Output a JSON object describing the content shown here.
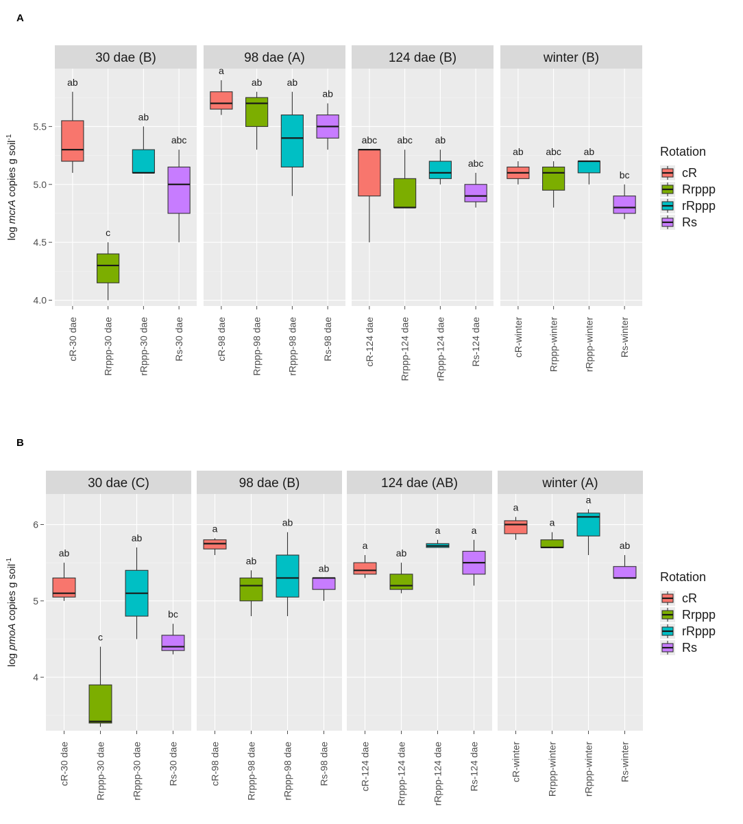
{
  "colors": {
    "cR": "#f8766d",
    "Rrppp": "#7cae00",
    "rRppp": "#00bfc4",
    "Rs": "#c77cff"
  },
  "legend": {
    "title": "Rotation",
    "entries": [
      {
        "key": "cR",
        "label": "cR"
      },
      {
        "key": "Rrppp",
        "label": "Rrppp"
      },
      {
        "key": "rRppp",
        "label": "rRppp"
      },
      {
        "key": "Rs",
        "label": "Rs"
      }
    ]
  },
  "chart_data": [
    {
      "type": "box",
      "panel_letter": "A",
      "ylabel_pre": "log ",
      "ylabel_gene": "mcrA",
      "ylabel_post": " copies g soil",
      "ylabel_sup": "-1",
      "ylim": [
        3.95,
        6.0
      ],
      "yticks": [
        4.0,
        4.5,
        5.0,
        5.5
      ],
      "ytick_labels": [
        "4.0",
        "4.5",
        "5.0",
        "5.5"
      ],
      "facets": [
        {
          "title": "30 dae (B)",
          "boxes": [
            {
              "label": "cR-30 dae",
              "group": "cR",
              "min": 5.1,
              "q1": 5.2,
              "median": 5.3,
              "q3": 5.55,
              "max": 5.8,
              "letter": "ab"
            },
            {
              "label": "Rrppp-30 dae",
              "group": "Rrppp",
              "min": 4.0,
              "q1": 4.15,
              "median": 4.3,
              "q3": 4.4,
              "max": 4.5,
              "letter": "c"
            },
            {
              "label": "rRppp-30 dae",
              "group": "rRppp",
              "min": 5.1,
              "q1": 5.1,
              "median": 5.1,
              "q3": 5.3,
              "max": 5.5,
              "letter": "ab"
            },
            {
              "label": "Rs-30 dae",
              "group": "Rs",
              "min": 4.5,
              "q1": 4.75,
              "median": 5.0,
              "q3": 5.15,
              "max": 5.3,
              "letter": "abc"
            }
          ]
        },
        {
          "title": "98 dae (A)",
          "boxes": [
            {
              "label": "cR-98 dae",
              "group": "cR",
              "min": 5.6,
              "q1": 5.65,
              "median": 5.7,
              "q3": 5.8,
              "max": 5.9,
              "letter": "a"
            },
            {
              "label": "Rrppp-98 dae",
              "group": "Rrppp",
              "min": 5.3,
              "q1": 5.5,
              "median": 5.7,
              "q3": 5.75,
              "max": 5.8,
              "letter": "ab"
            },
            {
              "label": "rRppp-98 dae",
              "group": "rRppp",
              "min": 4.9,
              "q1": 5.15,
              "median": 5.4,
              "q3": 5.6,
              "max": 5.8,
              "letter": "ab"
            },
            {
              "label": "Rs-98 dae",
              "group": "Rs",
              "min": 5.3,
              "q1": 5.4,
              "median": 5.5,
              "q3": 5.6,
              "max": 5.7,
              "letter": "ab"
            }
          ]
        },
        {
          "title": "124 dae (B)",
          "boxes": [
            {
              "label": "cR-124 dae",
              "group": "cR",
              "min": 4.5,
              "q1": 4.9,
              "median": 5.3,
              "q3": 5.3,
              "max": 5.3,
              "letter": "abc"
            },
            {
              "label": "Rrppp-124 dae",
              "group": "Rrppp",
              "min": 4.8,
              "q1": 4.8,
              "median": 4.8,
              "q3": 5.05,
              "max": 5.3,
              "letter": "abc"
            },
            {
              "label": "rRppp-124 dae",
              "group": "rRppp",
              "min": 5.0,
              "q1": 5.05,
              "median": 5.1,
              "q3": 5.2,
              "max": 5.3,
              "letter": "ab"
            },
            {
              "label": "Rs-124 dae",
              "group": "Rs",
              "min": 4.8,
              "q1": 4.85,
              "median": 4.9,
              "q3": 5.0,
              "max": 5.1,
              "letter": "abc"
            }
          ]
        },
        {
          "title": "winter (B)",
          "boxes": [
            {
              "label": "cR-winter",
              "group": "cR",
              "min": 5.0,
              "q1": 5.05,
              "median": 5.1,
              "q3": 5.15,
              "max": 5.2,
              "letter": "ab"
            },
            {
              "label": "Rrppp-winter",
              "group": "Rrppp",
              "min": 4.8,
              "q1": 4.95,
              "median": 5.1,
              "q3": 5.15,
              "max": 5.2,
              "letter": "abc"
            },
            {
              "label": "rRppp-winter",
              "group": "rRppp",
              "min": 5.0,
              "q1": 5.1,
              "median": 5.2,
              "q3": 5.2,
              "max": 5.2,
              "letter": "ab"
            },
            {
              "label": "Rs-winter",
              "group": "Rs",
              "min": 4.7,
              "q1": 4.75,
              "median": 4.8,
              "q3": 4.9,
              "max": 5.0,
              "letter": "bc"
            }
          ]
        }
      ]
    },
    {
      "type": "box",
      "panel_letter": "B",
      "ylabel_pre": "log ",
      "ylabel_gene": "pmoA",
      "ylabel_post": " copies g soil",
      "ylabel_sup": "-1",
      "ylim": [
        3.3,
        6.4
      ],
      "yticks": [
        4,
        5,
        6
      ],
      "ytick_labels": [
        "4",
        "5",
        "6"
      ],
      "facets": [
        {
          "title": "30 dae (C)",
          "boxes": [
            {
              "label": "cR-30 dae",
              "group": "cR",
              "min": 5.0,
              "q1": 5.05,
              "median": 5.1,
              "q3": 5.3,
              "max": 5.5,
              "letter": "ab"
            },
            {
              "label": "Rrppp-30 dae",
              "group": "Rrppp",
              "min": 3.35,
              "q1": 3.4,
              "median": 3.42,
              "q3": 3.9,
              "max": 4.4,
              "letter": "c"
            },
            {
              "label": "rRppp-30 dae",
              "group": "rRppp",
              "min": 4.5,
              "q1": 4.8,
              "median": 5.1,
              "q3": 5.4,
              "max": 5.7,
              "letter": "ab"
            },
            {
              "label": "Rs-30 dae",
              "group": "Rs",
              "min": 4.3,
              "q1": 4.35,
              "median": 4.4,
              "q3": 4.55,
              "max": 4.7,
              "letter": "bc"
            }
          ]
        },
        {
          "title": "98 dae (B)",
          "boxes": [
            {
              "label": "cR-98 dae",
              "group": "cR",
              "min": 5.6,
              "q1": 5.68,
              "median": 5.75,
              "q3": 5.8,
              "max": 5.82,
              "letter": "a"
            },
            {
              "label": "Rrppp-98 dae",
              "group": "Rrppp",
              "min": 4.8,
              "q1": 5.0,
              "median": 5.2,
              "q3": 5.3,
              "max": 5.4,
              "letter": "ab"
            },
            {
              "label": "rRppp-98 dae",
              "group": "rRppp",
              "min": 4.8,
              "q1": 5.05,
              "median": 5.3,
              "q3": 5.6,
              "max": 5.9,
              "letter": "ab"
            },
            {
              "label": "Rs-98 dae",
              "group": "Rs",
              "min": 5.0,
              "q1": 5.15,
              "median": 5.3,
              "q3": 5.3,
              "max": 5.3,
              "letter": "ab"
            }
          ]
        },
        {
          "title": "124 dae (AB)",
          "boxes": [
            {
              "label": "cR-124 dae",
              "group": "cR",
              "min": 5.3,
              "q1": 5.35,
              "median": 5.4,
              "q3": 5.5,
              "max": 5.6,
              "letter": "a"
            },
            {
              "label": "Rrppp-124 dae",
              "group": "Rrppp",
              "min": 5.1,
              "q1": 5.15,
              "median": 5.2,
              "q3": 5.35,
              "max": 5.5,
              "letter": "ab"
            },
            {
              "label": "rRppp-124 dae",
              "group": "rRppp",
              "min": 5.7,
              "q1": 5.7,
              "median": 5.72,
              "q3": 5.75,
              "max": 5.8,
              "letter": "a"
            },
            {
              "label": "Rs-124 dae",
              "group": "Rs",
              "min": 5.2,
              "q1": 5.35,
              "median": 5.5,
              "q3": 5.65,
              "max": 5.8,
              "letter": "a"
            }
          ]
        },
        {
          "title": "winter (A)",
          "boxes": [
            {
              "label": "cR-winter",
              "group": "cR",
              "min": 5.8,
              "q1": 5.88,
              "median": 6.0,
              "q3": 6.05,
              "max": 6.1,
              "letter": "a"
            },
            {
              "label": "Rrppp-winter",
              "group": "Rrppp",
              "min": 5.7,
              "q1": 5.7,
              "median": 5.7,
              "q3": 5.8,
              "max": 5.9,
              "letter": "a"
            },
            {
              "label": "rRppp-winter",
              "group": "rRppp",
              "min": 5.6,
              "q1": 5.85,
              "median": 6.1,
              "q3": 6.15,
              "max": 6.2,
              "letter": "a"
            },
            {
              "label": "Rs-winter",
              "group": "Rs",
              "min": 5.3,
              "q1": 5.3,
              "median": 5.3,
              "q3": 5.45,
              "max": 5.6,
              "letter": "ab"
            }
          ]
        }
      ]
    }
  ]
}
